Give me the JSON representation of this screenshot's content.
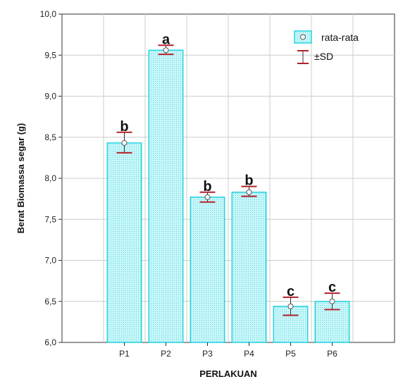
{
  "chart_data": {
    "type": "bar",
    "categories": [
      "P1",
      "P2",
      "P3",
      "P4",
      "P5",
      "P6"
    ],
    "values": [
      8.43,
      9.56,
      7.77,
      7.83,
      6.44,
      6.5
    ],
    "sd_upper": [
      8.56,
      9.62,
      7.83,
      7.9,
      6.55,
      6.6
    ],
    "sd_lower": [
      8.31,
      9.51,
      7.71,
      7.78,
      6.33,
      6.4
    ],
    "significance_labels": [
      "b",
      "a",
      "b",
      "b",
      "c",
      "c"
    ],
    "xlabel": "PERLAKUAN",
    "ylabel": "Berat Biomassa segar (g)",
    "ylim": [
      6.0,
      10.0
    ],
    "yticks": [
      "6,0",
      "6,5",
      "7,0",
      "7,5",
      "8,0",
      "8,5",
      "9,0",
      "9,5",
      "10,0"
    ],
    "grid": true,
    "legend": {
      "placement": "top-right",
      "mean_label": "rata-rata",
      "sd_label": "±SD"
    },
    "colors": {
      "bar_fill": "#b8f4f8",
      "bar_stroke": "#22d3e0",
      "error_bar": "#b3202a",
      "grid": "#cccccc"
    }
  }
}
